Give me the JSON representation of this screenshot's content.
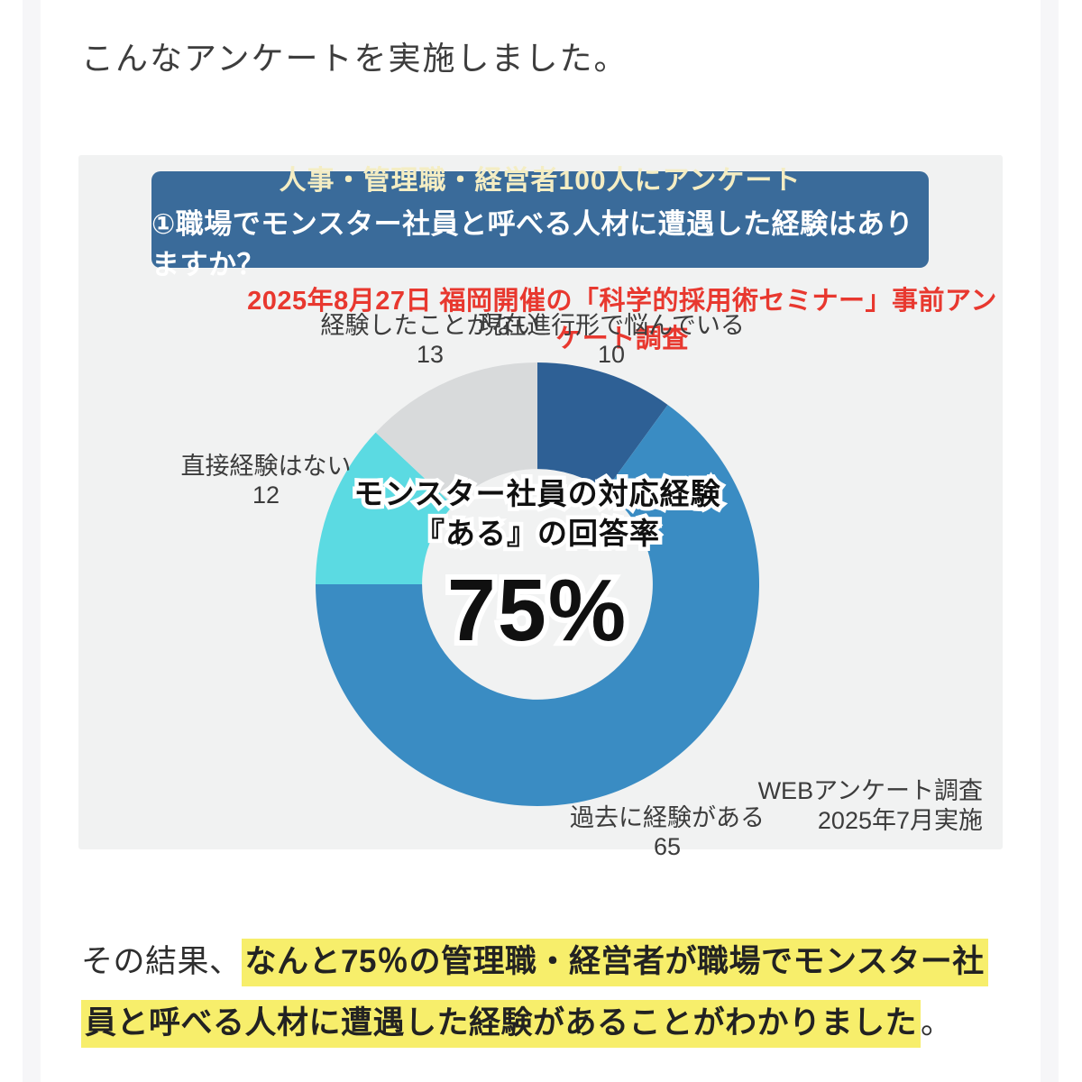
{
  "page": {
    "intro_text": "こんなアンケートを実施しました。"
  },
  "survey_card": {
    "banner": {
      "line1": "人事・管理職・経営者100人にアンケート",
      "line2": "①職場でモンスター社員と呼べる人材に遭遇した経験はありますか？",
      "bg_color": "#3a6b9a",
      "line1_color": "#f4edc3",
      "line2_color": "#ffffff"
    },
    "subtitle": "2025年8月27日 福岡開催の「科学的採用術セミナー」事前アンケート調査",
    "subtitle_color": "#e8382f",
    "source_line1": "WEBアンケート調査",
    "source_line2": "2025年7月実施"
  },
  "chart_data": {
    "type": "pie",
    "subtype": "donut",
    "start": "top",
    "direction": "clockwise",
    "hole_ratio": 0.52,
    "total": 100,
    "segments": [
      {
        "label": "現在進行形で悩んでいる",
        "value": 10,
        "color": "#2e6095"
      },
      {
        "label": "過去に経験がある",
        "value": 65,
        "color": "#3a8cc3"
      },
      {
        "label": "直接経験はない",
        "value": 12,
        "color": "#5bdae2"
      },
      {
        "label": "経験したことがない",
        "value": 13,
        "color": "#d8dadb"
      }
    ],
    "center_text": {
      "line1": "モンスター社員の対応経験",
      "line2": "『ある』の回答率",
      "value": "75%"
    }
  },
  "conclusion": {
    "prefix": "その結果、",
    "highlight_line1": "なんと75％の管理職・経営者が職場でモンスター社",
    "highlight_line2": "員と呼べる人材に遭遇した経験があることがわかりました",
    "suffix": "。",
    "highlight_color": "#f7ee6b"
  }
}
